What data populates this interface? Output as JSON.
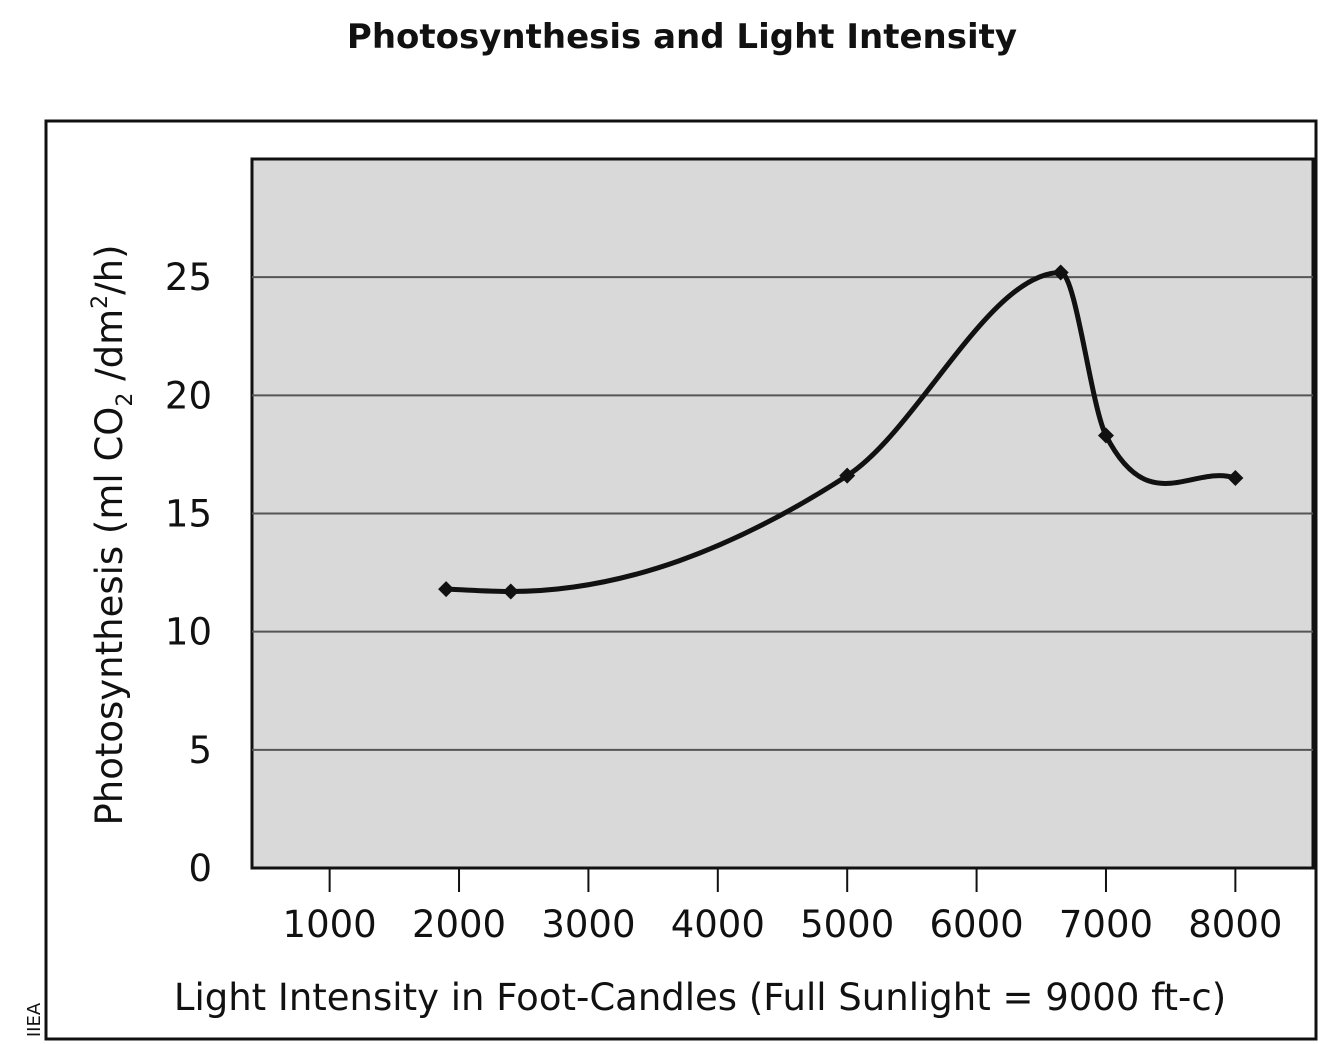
{
  "chart_data": {
    "type": "line",
    "title": "Photosynthesis and Light Intensity",
    "xlabel": "Light Intensity in Foot-Candles (Full Sunlight = 9000 ft-c)",
    "ylabel": {
      "prefix": "Photosynthesis (ml CO",
      "sub": "2",
      "mid": " /dm",
      "sup": "2",
      "suffix": "/h)"
    },
    "x": [
      1900,
      2400,
      5000,
      6650,
      7000,
      8000
    ],
    "y": [
      11.8,
      11.7,
      16.6,
      25.2,
      18.3,
      16.5
    ],
    "xlim": [
      400,
      8600
    ],
    "ylim": [
      0,
      30
    ],
    "x_ticks": [
      1000,
      2000,
      3000,
      4000,
      5000,
      6000,
      7000,
      8000
    ],
    "x_tick_labels": [
      "1000",
      "2000",
      "3000",
      "4000",
      "5000",
      "6000",
      "7000",
      "8000"
    ],
    "y_ticks": [
      0,
      5,
      10,
      15,
      20,
      25
    ],
    "y_tick_labels": [
      "0",
      "5",
      "10",
      "15",
      "20",
      "25"
    ],
    "grid": "horizontal",
    "plot_background": "#d9d9d9",
    "line_color": "#111111"
  },
  "credit": "IIEA"
}
